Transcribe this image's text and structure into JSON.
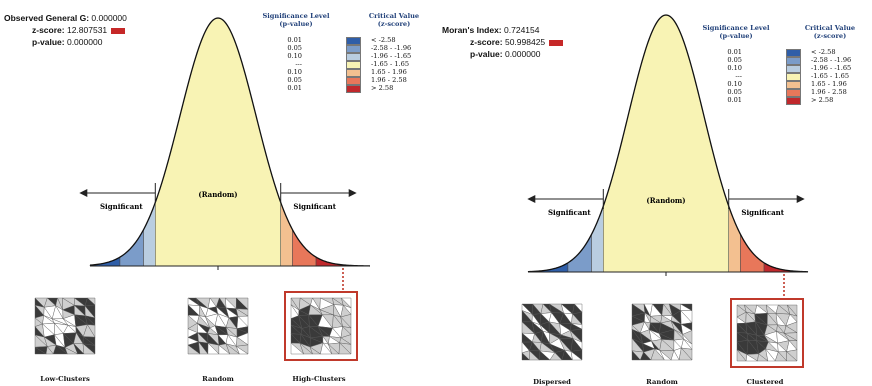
{
  "left": {
    "stats": {
      "stat_label": "Observed General G:",
      "stat_value": "0.000000",
      "z_label": "z-score:",
      "z_value": "12.807531",
      "p_label": "p-value:",
      "p_value": "0.000000"
    },
    "curve": {
      "random_label": "(Random)",
      "sig_left": "Significant",
      "sig_right": "Significant"
    },
    "maps": [
      {
        "caption": "Low-Clusters"
      },
      {
        "caption": "Random"
      },
      {
        "caption": "High-Clusters"
      }
    ]
  },
  "right": {
    "stats": {
      "stat_label": "Moran's Index:",
      "stat_value": "0.724154",
      "z_label": "z-score:",
      "z_value": "50.998425",
      "p_label": "p-value:",
      "p_value": "0.000000"
    },
    "curve": {
      "random_label": "(Random)",
      "sig_left": "Significant",
      "sig_right": "Significant"
    },
    "maps": [
      {
        "caption": "Dispersed"
      },
      {
        "caption": "Random"
      },
      {
        "caption": "Clustered"
      }
    ]
  },
  "legend": {
    "sig_header_1": "Significance Level",
    "sig_header_2": "(p-value)",
    "cv_header_1": "Critical Value",
    "cv_header_2": "(z-score)",
    "rows": [
      {
        "p": "0.01",
        "z": "< -2.58",
        "color": "#2f5ea8"
      },
      {
        "p": "0.05",
        "z": "-2.58 - -1.96",
        "color": "#7b9cc9"
      },
      {
        "p": "0.10",
        "z": "-1.96 - -1.65",
        "color": "#b9cde0"
      },
      {
        "p": "---",
        "z": "-1.65 - 1.65",
        "color": "#f8f3b4"
      },
      {
        "p": "0.10",
        "z": "1.65 - 1.96",
        "color": "#f3c090"
      },
      {
        "p": "0.05",
        "z": "1.96 - 2.58",
        "color": "#e8775a"
      },
      {
        "p": "0.01",
        "z": "> 2.58",
        "color": "#c0282c"
      }
    ]
  },
  "right_legend_cv": [
    "< -2.58",
    "-2.58 - -1.96",
    "-1.96 - -1.65",
    "-1.65 - 1.65",
    "1.65 - 1.96",
    "1.96 - 2.58",
    "> 2.58"
  ],
  "colors": {
    "accent_red": "#c0392b",
    "curve_stroke": "#111111"
  }
}
